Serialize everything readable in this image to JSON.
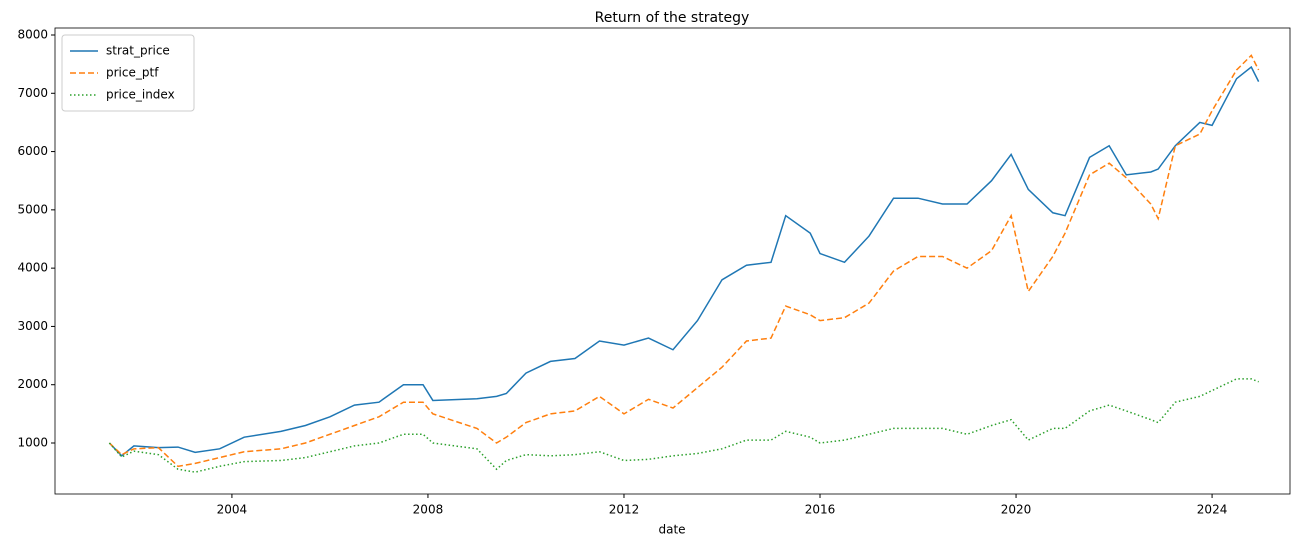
{
  "chart_data": {
    "type": "line",
    "title": "Return of the strategy",
    "xlabel": "date",
    "x": [
      2001.5,
      2001.75,
      2002.0,
      2002.5,
      2002.9,
      2003.25,
      2003.75,
      2004.25,
      2005.0,
      2005.5,
      2006.0,
      2006.5,
      2007.0,
      2007.5,
      2007.9,
      2008.1,
      2009.0,
      2009.4,
      2009.6,
      2010.0,
      2010.5,
      2011.0,
      2011.5,
      2012.0,
      2012.5,
      2013.0,
      2013.5,
      2014.0,
      2014.5,
      2015.0,
      2015.3,
      2015.8,
      2016.0,
      2016.5,
      2017.0,
      2017.5,
      2018.0,
      2018.5,
      2019.0,
      2019.5,
      2019.9,
      2020.25,
      2020.75,
      2021.0,
      2021.5,
      2021.9,
      2022.25,
      2022.75,
      2022.9,
      2023.25,
      2023.75,
      2024.0,
      2024.5,
      2024.8,
      2024.95
    ],
    "series": [
      {
        "name": "strat_price",
        "color": "#1f77b4",
        "linestyle": "solid",
        "values": [
          1000,
          780,
          950,
          920,
          930,
          840,
          900,
          1100,
          1200,
          1300,
          1450,
          1650,
          1700,
          2000,
          2000,
          1730,
          1760,
          1800,
          1850,
          2200,
          2400,
          2450,
          2750,
          2680,
          2800,
          2600,
          3100,
          3800,
          4050,
          4100,
          4900,
          4600,
          4250,
          4100,
          4550,
          5200,
          5200,
          5100,
          5100,
          5500,
          5950,
          5350,
          4950,
          4900,
          5900,
          6100,
          5600,
          5650,
          5700,
          6100,
          6500,
          6450,
          7250,
          7450,
          7200
        ]
      },
      {
        "name": "price_ptf",
        "color": "#ff7f0e",
        "linestyle": "dashed",
        "values": [
          1000,
          800,
          900,
          920,
          600,
          650,
          750,
          850,
          900,
          1000,
          1150,
          1300,
          1450,
          1700,
          1700,
          1500,
          1250,
          1000,
          1100,
          1350,
          1500,
          1550,
          1800,
          1500,
          1750,
          1600,
          1950,
          2300,
          2750,
          2800,
          3350,
          3200,
          3100,
          3150,
          3400,
          3950,
          4200,
          4200,
          4000,
          4300,
          4900,
          3600,
          4200,
          4600,
          5600,
          5800,
          5550,
          5100,
          4850,
          6100,
          6300,
          6700,
          7400,
          7650,
          7400
        ]
      },
      {
        "name": "price_index",
        "color": "#2ca02c",
        "linestyle": "dotted",
        "values": [
          1000,
          760,
          860,
          800,
          550,
          500,
          600,
          680,
          700,
          750,
          850,
          950,
          1000,
          1150,
          1150,
          1000,
          900,
          550,
          700,
          800,
          780,
          800,
          850,
          700,
          720,
          780,
          820,
          900,
          1050,
          1050,
          1200,
          1100,
          1000,
          1050,
          1150,
          1250,
          1250,
          1250,
          1150,
          1300,
          1400,
          1050,
          1250,
          1250,
          1550,
          1650,
          1550,
          1400,
          1350,
          1700,
          1800,
          1900,
          2100,
          2100,
          2050
        ]
      }
    ],
    "xlim": [
      2000.39,
      2025.59
    ],
    "xticks": [
      2004,
      2008,
      2012,
      2016,
      2020,
      2024
    ],
    "ylim": [
      125,
      8120
    ],
    "yticks": [
      1000,
      2000,
      3000,
      4000,
      5000,
      6000,
      7000,
      8000
    ],
    "grid": false,
    "legend": "upper left"
  }
}
